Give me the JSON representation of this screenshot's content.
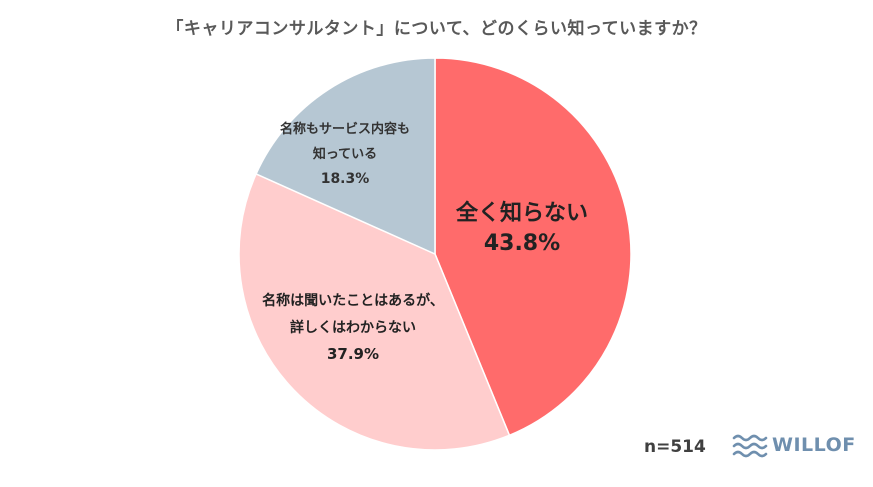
{
  "title": "「キャリアコンサルタント」について、どのくらい知っていますか？",
  "sample_size": "n=514",
  "logo": {
    "text": "WILLOF",
    "icon": "waves-icon",
    "color": "#6f8fae"
  },
  "chart_data": {
    "type": "pie",
    "start": "12 o'clock",
    "direction": "clockwise",
    "slices": [
      {
        "label_lines": [
          "全く知らない"
        ],
        "value": 43.8,
        "value_label": "43.8%",
        "color": "#ff6b6b"
      },
      {
        "label_lines": [
          "名称は聞いたことはあるが、",
          "詳しくはわからない"
        ],
        "value": 37.9,
        "value_label": "37.9%",
        "color": "#ffcdcd"
      },
      {
        "label_lines": [
          "名称もサービス内容も",
          "知っている"
        ],
        "value": 18.3,
        "value_label": "18.3%",
        "color": "#b6c7d3"
      }
    ]
  }
}
